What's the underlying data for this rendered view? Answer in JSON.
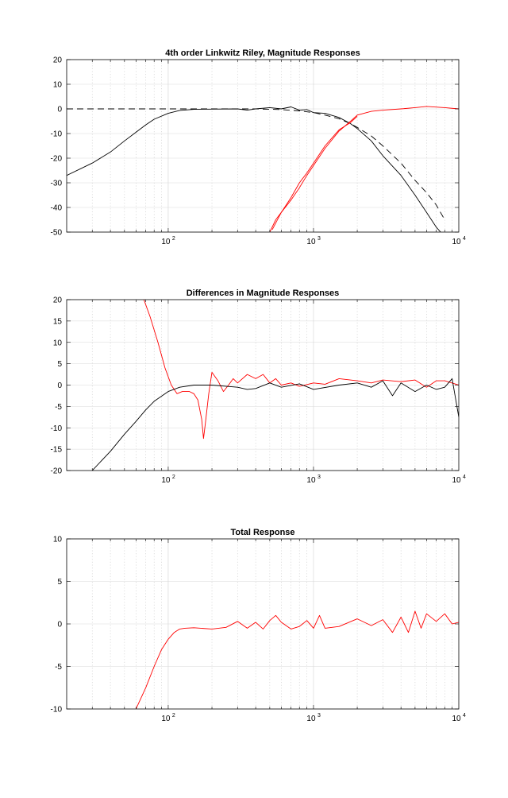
{
  "chart_data": [
    {
      "type": "line",
      "title": "4th order Linkwitz Riley, Magnitude Responses",
      "xscale": "log",
      "xlim": [
        20,
        10000
      ],
      "ylim": [
        -50,
        20
      ],
      "yticks": [
        20,
        10,
        0,
        -10,
        -20,
        -30,
        -40,
        -50
      ],
      "xtick_labels": [
        "10",
        "10",
        "10"
      ],
      "xtick_exponents": [
        "2",
        "3",
        "4"
      ],
      "grid": true,
      "series": [
        {
          "color": "#000000",
          "dash": "8,5",
          "x": [
            20,
            30,
            40,
            50,
            70,
            100,
            150,
            200,
            300,
            400,
            600,
            800,
            1000,
            1200,
            1500,
            1800,
            2000,
            2500,
            3000,
            4000,
            5000,
            6000,
            7000,
            8000
          ],
          "y": [
            0,
            0,
            0,
            0,
            0,
            0,
            0,
            0,
            0,
            0,
            -0.3,
            -0.8,
            -1.5,
            -2.5,
            -4,
            -6,
            -7.5,
            -11,
            -15,
            -22,
            -29,
            -34,
            -39,
            -45
          ]
        },
        {
          "color": "#000000",
          "x": [
            20,
            30,
            40,
            50,
            60,
            70,
            80,
            100,
            120,
            150,
            200,
            300,
            350,
            400,
            500,
            600,
            700,
            800,
            900,
            1000,
            1200,
            1500,
            1800,
            2000,
            2500,
            3000,
            4000,
            5000,
            6000,
            7000,
            7500
          ],
          "y": [
            -27,
            -22,
            -17.5,
            -13,
            -9.5,
            -6.5,
            -4.2,
            -1.8,
            -0.6,
            -0.2,
            -0.1,
            0,
            -0.5,
            0,
            0.5,
            0,
            0.8,
            -0.5,
            -0.3,
            -1.5,
            -1.8,
            -3.5,
            -6,
            -8,
            -13,
            -19,
            -27,
            -35,
            -42,
            -48,
            -50
          ]
        },
        {
          "color": "#ff0000",
          "x": [
            500,
            550,
            600,
            700,
            800,
            900,
            1000,
            1200,
            1500,
            1800,
            2000,
            2500,
            3000,
            4000,
            5000,
            6000,
            8000,
            10000
          ],
          "y": [
            -50,
            -45,
            -42,
            -37,
            -32,
            -27,
            -23,
            -16,
            -9,
            -5,
            -2.5,
            -1,
            -0.5,
            0,
            0.5,
            1,
            0.5,
            0
          ]
        },
        {
          "color": "#ff0000",
          "x": [
            520,
            600,
            700,
            800,
            900,
            1000,
            1200,
            1500,
            1800,
            2000
          ],
          "y": [
            -49,
            -42,
            -36,
            -30,
            -26,
            -22,
            -15,
            -8.5,
            -5.5,
            -3
          ]
        }
      ]
    },
    {
      "type": "line",
      "title": "Differences in Magnitude Responses",
      "xscale": "log",
      "xlim": [
        20,
        10000
      ],
      "ylim": [
        -20,
        20
      ],
      "yticks": [
        20,
        15,
        10,
        5,
        0,
        -5,
        -10,
        -15,
        -20
      ],
      "xtick_labels": [
        "10",
        "10",
        "10"
      ],
      "xtick_exponents": [
        "2",
        "3",
        "4"
      ],
      "grid": true,
      "series": [
        {
          "color": "#ff0000",
          "x": [
            68,
            75,
            85,
            95,
            105,
            115,
            125,
            140,
            150,
            160,
            170,
            175,
            180,
            190,
            200,
            220,
            240,
            260,
            280,
            300,
            350,
            400,
            450,
            500,
            550,
            600,
            700,
            800,
            1000,
            1200,
            1500,
            2000,
            2500,
            3000,
            4000,
            5000,
            6000,
            7000,
            8000,
            10000
          ],
          "y": [
            20,
            16,
            10,
            4,
            0,
            -2,
            -1.5,
            -1.5,
            -2,
            -3.5,
            -8,
            -12.5,
            -9,
            -2,
            3,
            1,
            -1.5,
            0,
            1.5,
            0.5,
            2.5,
            1.5,
            2.5,
            0.5,
            1.5,
            0,
            0.5,
            -0.3,
            0.5,
            0.2,
            1.5,
            1,
            0.5,
            1.2,
            0.8,
            1.2,
            -0.5,
            1,
            1,
            0
          ]
        },
        {
          "color": "#000000",
          "x": [
            30,
            40,
            50,
            60,
            70,
            80,
            100,
            120,
            150,
            200,
            300,
            350,
            400,
            500,
            600,
            800,
            1000,
            1500,
            2000,
            2500,
            3000,
            3500,
            4000,
            5000,
            6000,
            7000,
            8000,
            9000,
            10000
          ],
          "y": [
            -20,
            -15.5,
            -11.5,
            -8.5,
            -5.8,
            -3.8,
            -1.5,
            -0.5,
            0,
            0,
            -0.5,
            -1,
            -0.8,
            0.5,
            -0.5,
            0.3,
            -1,
            0,
            0.5,
            -0.5,
            1,
            -2.5,
            0.5,
            -1.5,
            0,
            -1,
            -0.5,
            1.5,
            -7.5
          ]
        }
      ]
    },
    {
      "type": "line",
      "title": "Total Response",
      "xscale": "log",
      "xlim": [
        20,
        10000
      ],
      "ylim": [
        -10,
        10
      ],
      "yticks": [
        10,
        5,
        0,
        -5,
        -10
      ],
      "xtick_labels": [
        "10",
        "10",
        "10"
      ],
      "xtick_exponents": [
        "2",
        "3",
        "4"
      ],
      "grid": true,
      "series": [
        {
          "color": "#ff0000",
          "x": [
            60,
            70,
            80,
            90,
            100,
            110,
            120,
            130,
            150,
            200,
            250,
            300,
            350,
            400,
            450,
            500,
            550,
            600,
            700,
            800,
            900,
            1000,
            1100,
            1200,
            1500,
            2000,
            2500,
            3000,
            3500,
            4000,
            4500,
            5000,
            5500,
            6000,
            7000,
            8000,
            9000,
            10000
          ],
          "y": [
            -10,
            -7.5,
            -5,
            -3,
            -1.8,
            -1,
            -0.6,
            -0.5,
            -0.45,
            -0.6,
            -0.4,
            0.3,
            -0.5,
            0.2,
            -0.6,
            0.4,
            1,
            0.2,
            -0.6,
            -0.3,
            0.4,
            -0.5,
            1,
            -0.5,
            -0.3,
            0.6,
            -0.2,
            0.5,
            -1,
            0.8,
            -1,
            1.5,
            -0.5,
            1.2,
            0.3,
            1.2,
            0,
            0.2
          ]
        }
      ]
    }
  ]
}
